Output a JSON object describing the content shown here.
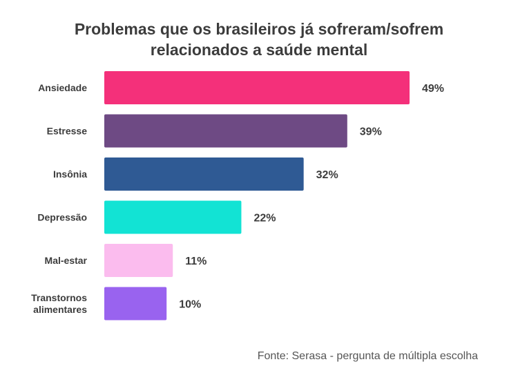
{
  "chart_data": {
    "type": "bar",
    "orientation": "horizontal",
    "title_lines": [
      "Problemas que os brasileiros já sofreram/sofrem",
      "relacionados a saúde mental"
    ],
    "categories": [
      [
        "Ansiedade"
      ],
      [
        "Estresse"
      ],
      [
        "Insônia"
      ],
      [
        "Depressão"
      ],
      [
        "Mal-estar"
      ],
      [
        "Transtornos",
        "alimentares"
      ]
    ],
    "values": [
      49,
      39,
      32,
      22,
      11,
      10
    ],
    "value_labels": [
      "49%",
      "39%",
      "32%",
      "22%",
      "11%",
      "10%"
    ],
    "colors": [
      "#f4307a",
      "#6e4a84",
      "#2f5a94",
      "#12e3d4",
      "#fbbcee",
      "#9963ef"
    ],
    "xlim": [
      0,
      49
    ],
    "grid": false,
    "legend": "none"
  },
  "source": "Fonte: Serasa - pergunta de múltipla escolha"
}
